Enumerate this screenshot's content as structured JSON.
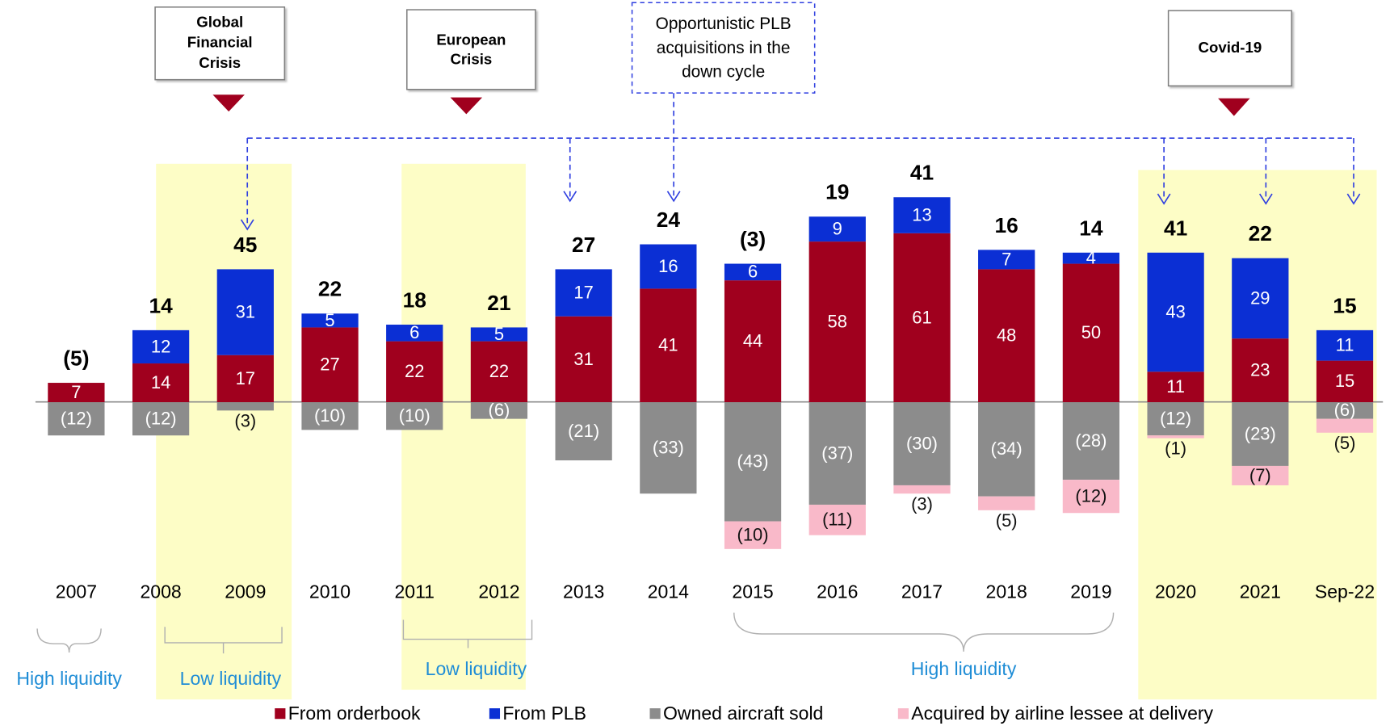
{
  "chart_data": {
    "type": "bar",
    "stacked": true,
    "categories": [
      "2007",
      "2008",
      "2009",
      "2010",
      "2011",
      "2012",
      "2013",
      "2014",
      "2015",
      "2016",
      "2017",
      "2018",
      "2019",
      "2020",
      "2021",
      "Sep-22"
    ],
    "series": [
      {
        "name": "From orderbook",
        "color": "#a0001e",
        "values": [
          7,
          14,
          17,
          27,
          22,
          22,
          31,
          41,
          44,
          58,
          61,
          48,
          50,
          11,
          23,
          15
        ]
      },
      {
        "name": "From PLB",
        "color": "#0b2fd4",
        "values": [
          null,
          12,
          31,
          5,
          6,
          5,
          17,
          16,
          6,
          9,
          13,
          7,
          4,
          43,
          29,
          11
        ]
      },
      {
        "name": "Owned aircraft sold",
        "color": "#8c8c8c",
        "values": [
          -12,
          -12,
          -3,
          -10,
          -10,
          -6,
          -21,
          -33,
          -43,
          -37,
          -30,
          -34,
          -28,
          -12,
          -23,
          -6
        ],
        "value_labels": [
          "(12)",
          "(12)",
          "(3)",
          "(10)",
          "(10)",
          "(6)",
          "(21)",
          "(33)",
          "(43)",
          "(37)",
          "(30)",
          "(34)",
          "(28)",
          "(12)",
          "(23)",
          "(6)"
        ]
      },
      {
        "name": "Acquired by airline lessee at delivery",
        "color": "#f9b9c9",
        "values": [
          null,
          null,
          null,
          null,
          null,
          null,
          null,
          null,
          -10,
          -11,
          -3,
          -5,
          -12,
          -1,
          -7,
          -5
        ],
        "value_labels": [
          null,
          null,
          null,
          null,
          null,
          null,
          null,
          null,
          "(10)",
          "(11)",
          "(3)",
          "(5)",
          "(12)",
          "(1)",
          "(7)",
          "(5)"
        ]
      }
    ],
    "totals": {
      "values": [
        -5,
        14,
        45,
        22,
        18,
        21,
        27,
        24,
        -3,
        19,
        41,
        16,
        14,
        41,
        22,
        15
      ],
      "value_labels": [
        "(5)",
        "14",
        "45",
        "22",
        "18",
        "21",
        "27",
        "24",
        "(3)",
        "19",
        "41",
        "16",
        "14",
        "41",
        "22",
        "15"
      ]
    },
    "ylim": [
      -60,
      80
    ],
    "annotations": [
      {
        "lines": [
          "Global",
          "Financial",
          "Crisis"
        ]
      },
      {
        "lines": [
          "European",
          "Crisis"
        ]
      },
      {
        "lines": [
          "Opportunistic PLB",
          "acquisitions in the",
          "down cycle"
        ]
      },
      {
        "lines": [
          "Covid-19"
        ]
      }
    ],
    "liquidity_labels": [
      "High liquidity",
      "Low liquidity",
      "Low liquidity",
      "High liquidity"
    ]
  }
}
